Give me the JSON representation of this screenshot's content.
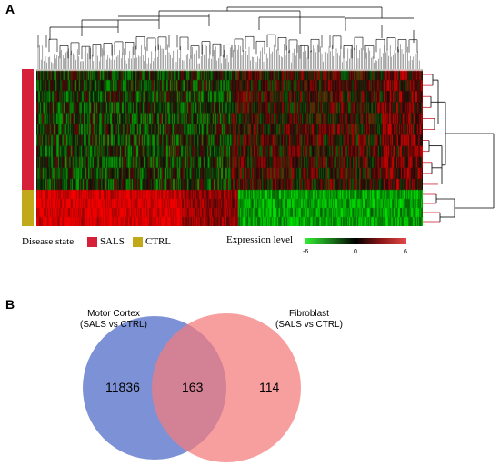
{
  "panel_a": {
    "label": "A",
    "legend": {
      "disease_state_label": "Disease state",
      "sals_label": "SALS",
      "ctrl_label": "CTRL",
      "expression_label": "Expression level",
      "scale_ticks": [
        "-6",
        "0",
        "6"
      ]
    },
    "colors": {
      "sals": "#d6203a",
      "ctrl": "#c2a91a",
      "low": "#33ee33",
      "mid": "#000000",
      "high": "#e54848"
    }
  },
  "panel_b": {
    "label": "B",
    "left_set": {
      "line1": "Motor Cortex",
      "line2": "(SALS vs CTRL)",
      "count": "11836",
      "color": "#6f86d1"
    },
    "right_set": {
      "line1": "Fibroblast",
      "line2": "(SALS vs CTRL)",
      "count": "114",
      "color": "#f47a7a"
    },
    "overlap_count": "163"
  }
}
